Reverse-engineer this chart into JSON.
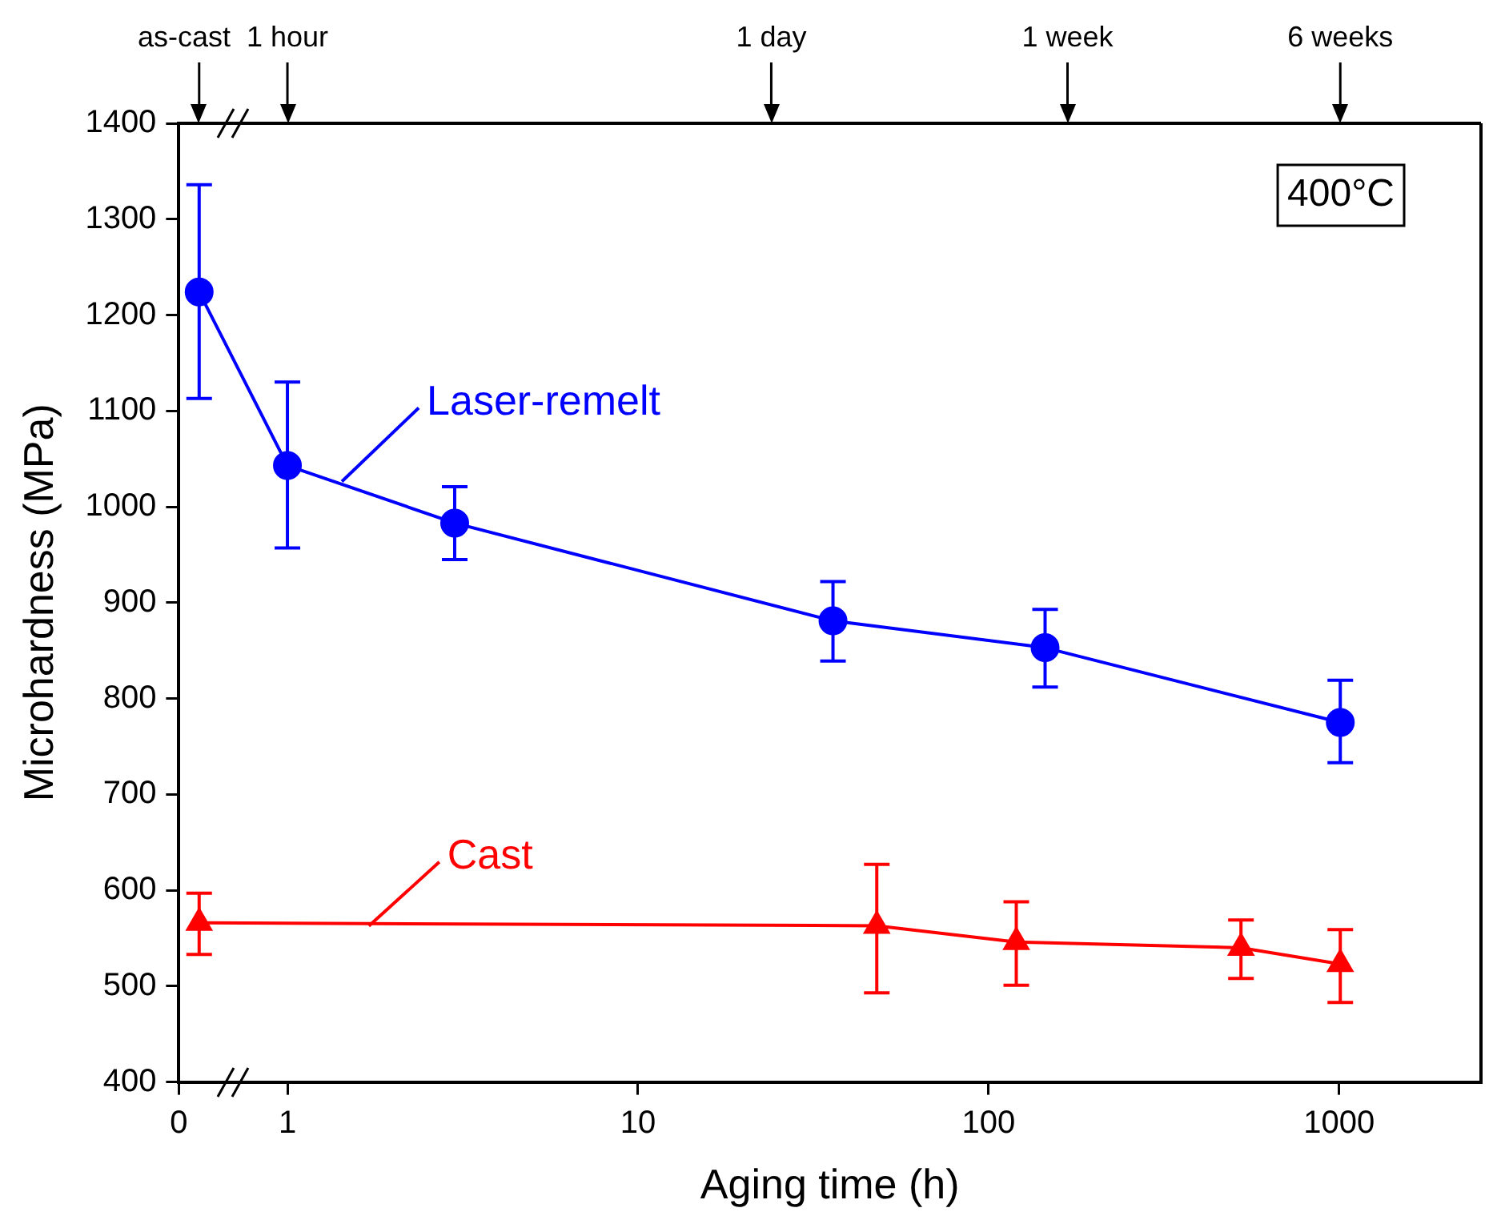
{
  "chart_data": {
    "type": "line",
    "xlabel": "Aging time (h)",
    "ylabel": "Microhardness (MPa)",
    "log": "x",
    "xlim": [
      0.49,
      2540
    ],
    "xticks": [
      {
        "value": 0.49,
        "label": "0"
      },
      1,
      10,
      100,
      1000
    ],
    "ylim": [
      400,
      1400
    ],
    "yticks": [
      400,
      500,
      600,
      700,
      800,
      900,
      1000,
      1100,
      1200,
      1300,
      1400
    ],
    "line_style": "solid",
    "annotations": [
      "400°C"
    ],
    "ref_lines": [
      {
        "axis": "x",
        "value": 0.56,
        "label": "as-cast"
      },
      {
        "axis": "x",
        "value": 1,
        "label": "1 hour"
      },
      {
        "axis": "x",
        "value": 24,
        "label": "1 day"
      },
      {
        "axis": "x",
        "value": 168,
        "label": "1 week"
      },
      {
        "axis": "x",
        "value": 1008,
        "label": "6 weeks"
      }
    ],
    "series": [
      {
        "name": "Laser-remelt",
        "color": "#0000ff",
        "marker": "circle",
        "x": [
          0.56,
          1,
          3,
          36,
          145,
          1008
        ],
        "values": [
          1224,
          1043,
          983,
          881,
          853,
          775
        ],
        "errors": [
          [
            1113,
            1336
          ],
          [
            957,
            1130
          ],
          [
            945,
            1021
          ],
          [
            839,
            922
          ],
          [
            812,
            893
          ],
          [
            733,
            819
          ]
        ]
      },
      {
        "name": "Cast",
        "color": "#ff0000",
        "marker": "triangle",
        "x": [
          0.56,
          48,
          120,
          525,
          1008
        ],
        "values": [
          566,
          563,
          546,
          540,
          523
        ],
        "errors": [
          [
            533,
            597
          ],
          [
            493,
            627
          ],
          [
            501,
            588
          ],
          [
            508,
            569
          ],
          [
            483,
            559
          ]
        ]
      }
    ]
  }
}
